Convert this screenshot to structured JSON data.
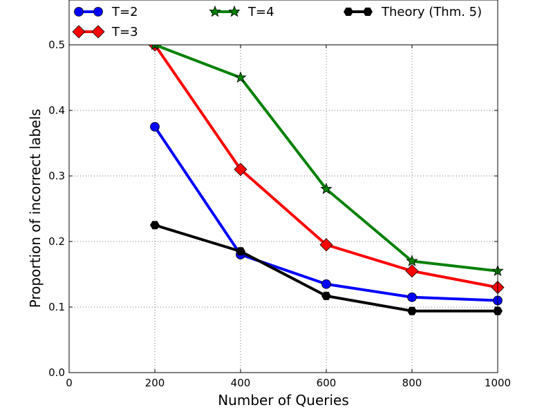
{
  "chart_data": {
    "type": "line",
    "title": "",
    "xlabel": "Number of Queries",
    "ylabel": "Proportion of incorrect labels",
    "xlim": [
      0,
      1000
    ],
    "ylim": [
      0.0,
      0.5
    ],
    "xticks": [
      0,
      200,
      400,
      600,
      800,
      1000
    ],
    "xtick_labels": [
      "0",
      "200",
      "400",
      "600",
      "800",
      "1000"
    ],
    "yticks": [
      0.0,
      0.1,
      0.2,
      0.3,
      0.4,
      0.5
    ],
    "ytick_labels": [
      "0.0",
      "0.1",
      "0.2",
      "0.3",
      "0.4",
      "0.5"
    ],
    "grid": true,
    "legend_position": "top",
    "x": [
      200,
      400,
      600,
      800,
      1000
    ],
    "series": [
      {
        "name": "T=2",
        "color": "#0000ff",
        "marker": "circle",
        "values": [
          0.375,
          0.18,
          0.135,
          0.115,
          0.11
        ]
      },
      {
        "name": "T=3",
        "color": "#ff0000",
        "marker": "diamond",
        "values": [
          0.5,
          0.31,
          0.195,
          0.155,
          0.13
        ]
      },
      {
        "name": "T=4",
        "color": "#008000",
        "marker": "star",
        "values": [
          0.5,
          0.45,
          0.28,
          0.17,
          0.155
        ]
      },
      {
        "name": "Theory (Thm. 5)",
        "color": "#000000",
        "marker": "hexagon",
        "values": [
          0.225,
          0.185,
          0.117,
          0.094,
          0.094
        ]
      }
    ]
  }
}
